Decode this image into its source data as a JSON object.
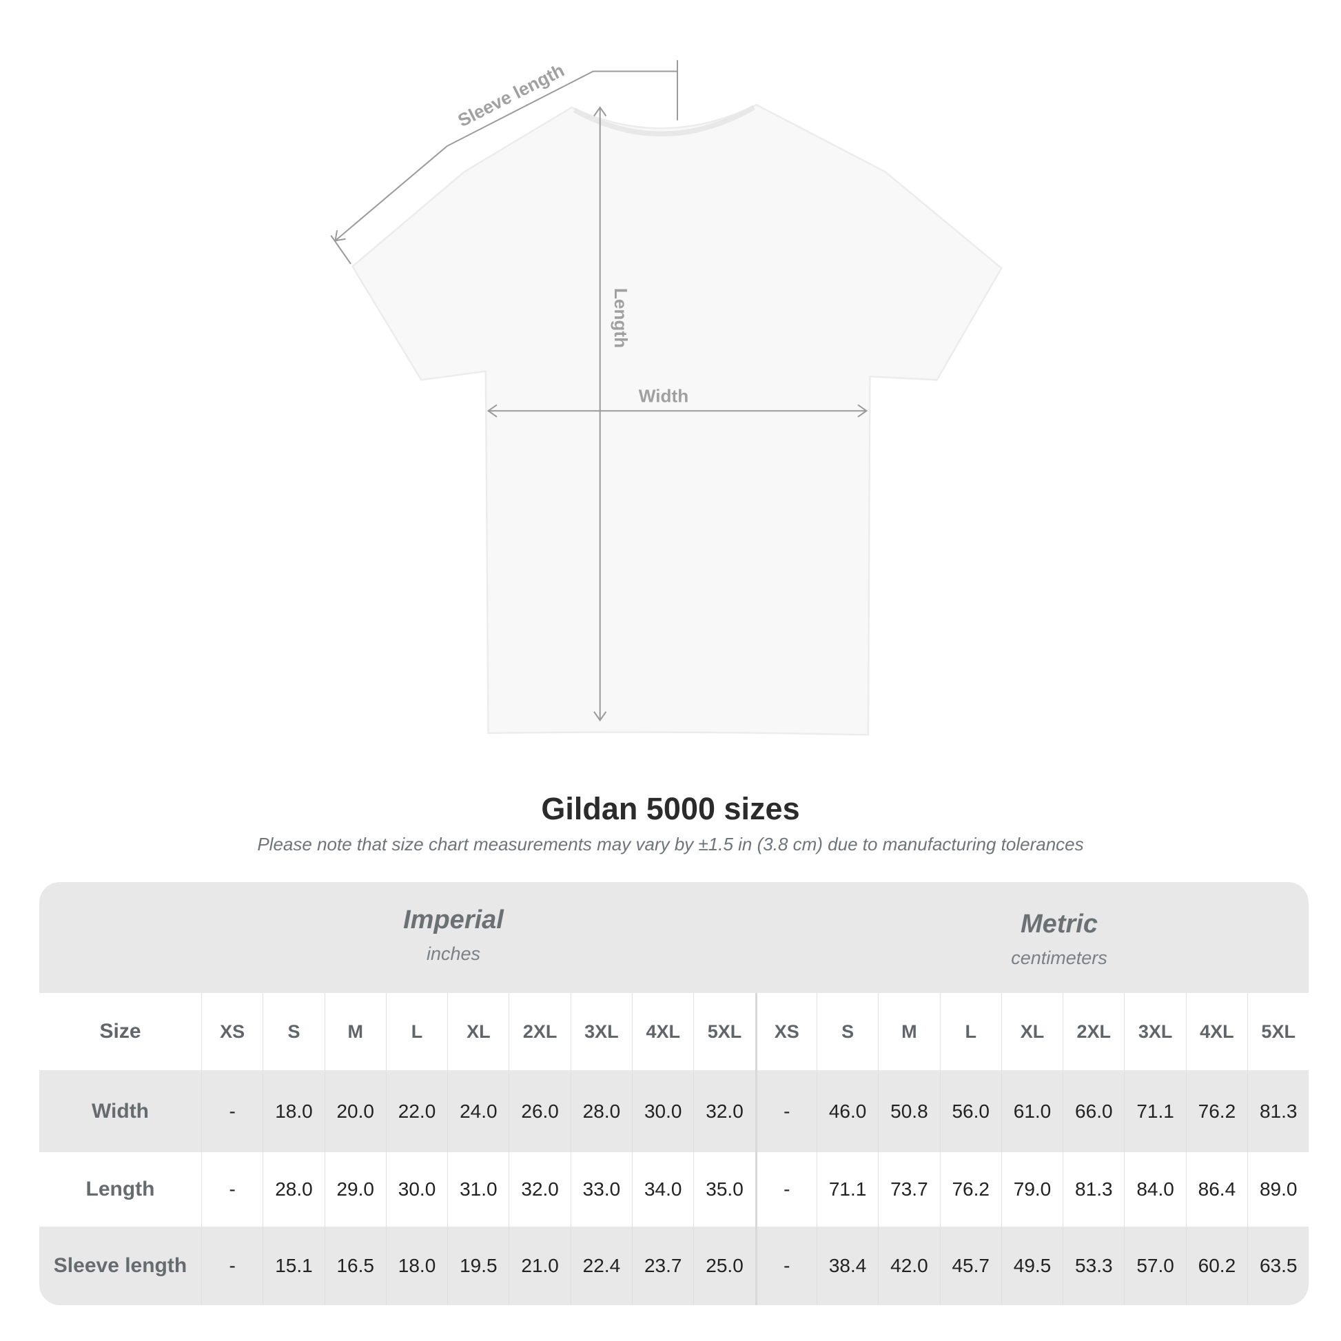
{
  "diagram": {
    "labels": {
      "sleeve": "Sleeve length",
      "length": "Length",
      "width": "Width"
    }
  },
  "title": "Gildan 5000 sizes",
  "note": "Please note that size chart measurements may vary by ±1.5 in (3.8 cm) due to manufacturing tolerances",
  "table": {
    "imperial": {
      "heading": "Imperial",
      "unit": "inches"
    },
    "metric": {
      "heading": "Metric",
      "unit": "centimeters"
    },
    "size_label": "Size",
    "sizes": [
      "XS",
      "S",
      "M",
      "L",
      "XL",
      "2XL",
      "3XL",
      "4XL",
      "5XL"
    ],
    "rows": [
      {
        "label": "Width",
        "imperial": [
          "-",
          "18.0",
          "20.0",
          "22.0",
          "24.0",
          "26.0",
          "28.0",
          "30.0",
          "32.0"
        ],
        "metric": [
          "-",
          "46.0",
          "50.8",
          "56.0",
          "61.0",
          "66.0",
          "71.1",
          "76.2",
          "81.3"
        ]
      },
      {
        "label": "Length",
        "imperial": [
          "-",
          "28.0",
          "29.0",
          "30.0",
          "31.0",
          "32.0",
          "33.0",
          "34.0",
          "35.0"
        ],
        "metric": [
          "-",
          "71.1",
          "73.7",
          "76.2",
          "79.0",
          "81.3",
          "84.0",
          "86.4",
          "89.0"
        ]
      },
      {
        "label": "Sleeve length",
        "imperial": [
          "-",
          "15.1",
          "16.5",
          "18.0",
          "19.5",
          "21.0",
          "22.4",
          "23.7",
          "25.0"
        ],
        "metric": [
          "-",
          "38.4",
          "42.0",
          "45.7",
          "49.5",
          "53.3",
          "57.0",
          "60.2",
          "63.5"
        ]
      }
    ]
  }
}
